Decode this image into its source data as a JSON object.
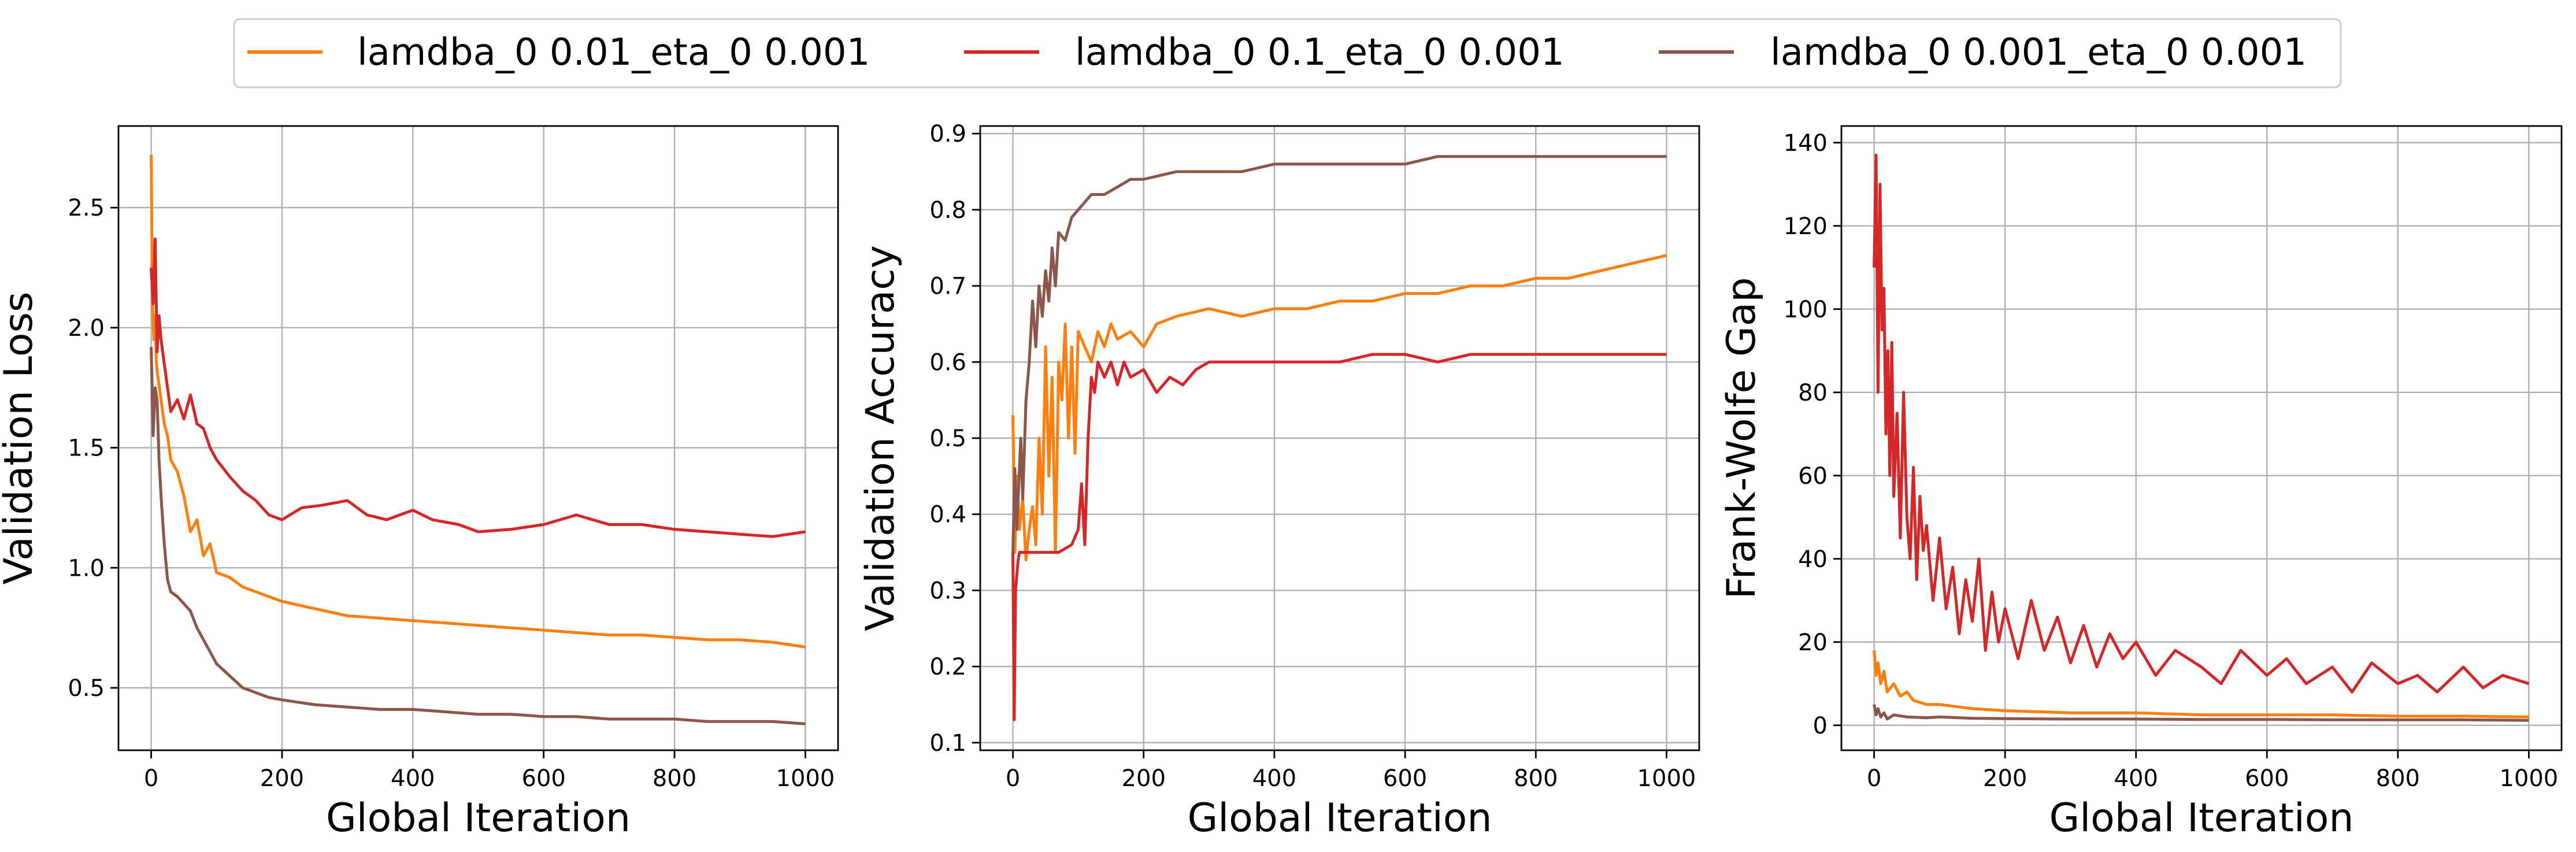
{
  "legend": [
    {
      "label": "lamdba_0 0.01_eta_0 0.001",
      "color": "#ff7f0e"
    },
    {
      "label": "lamdba_0 0.1_eta_0 0.001",
      "color": "#d62728"
    },
    {
      "label": "lamdba_0 0.001_eta_0 0.001",
      "color": "#8c564b"
    }
  ],
  "chart_data": [
    {
      "type": "line",
      "xlabel": "Global Iteration",
      "ylabel": "Validation Loss",
      "xlim": [
        -50,
        1050
      ],
      "ylim": [
        0.24,
        2.84
      ],
      "xticks": [
        0,
        200,
        400,
        600,
        800,
        1000
      ],
      "yticks": [
        0.5,
        1.0,
        1.5,
        2.0,
        2.5
      ],
      "yticklabels": [
        "0.5",
        "1.0",
        "1.5",
        "2.0",
        "2.5"
      ],
      "grid": true,
      "series": [
        {
          "name": "lamdba_0 0.01_eta_0 0.001",
          "color": "#ff7f0e",
          "x": [
            0,
            2,
            4,
            6,
            8,
            10,
            15,
            20,
            25,
            30,
            40,
            50,
            60,
            70,
            80,
            90,
            100,
            120,
            140,
            160,
            180,
            200,
            250,
            300,
            350,
            400,
            450,
            500,
            550,
            600,
            650,
            700,
            750,
            800,
            850,
            900,
            950,
            1000
          ],
          "y": [
            2.72,
            2.1,
            1.95,
            2.05,
            1.85,
            1.8,
            1.7,
            1.6,
            1.55,
            1.45,
            1.4,
            1.3,
            1.15,
            1.2,
            1.05,
            1.1,
            0.98,
            0.96,
            0.92,
            0.9,
            0.88,
            0.86,
            0.83,
            0.8,
            0.79,
            0.78,
            0.77,
            0.76,
            0.75,
            0.74,
            0.73,
            0.72,
            0.72,
            0.71,
            0.7,
            0.7,
            0.69,
            0.67
          ]
        },
        {
          "name": "lamdba_0 0.1_eta_0 0.001",
          "color": "#d62728",
          "x": [
            0,
            3,
            6,
            9,
            12,
            15,
            20,
            25,
            30,
            40,
            50,
            60,
            70,
            80,
            90,
            100,
            120,
            140,
            160,
            180,
            200,
            230,
            260,
            300,
            330,
            360,
            400,
            430,
            470,
            500,
            550,
            600,
            650,
            700,
            750,
            800,
            850,
            900,
            950,
            1000
          ],
          "y": [
            2.25,
            2.1,
            2.37,
            1.9,
            2.05,
            1.95,
            1.85,
            1.75,
            1.65,
            1.7,
            1.62,
            1.72,
            1.6,
            1.58,
            1.5,
            1.45,
            1.38,
            1.32,
            1.28,
            1.22,
            1.2,
            1.25,
            1.26,
            1.28,
            1.22,
            1.2,
            1.24,
            1.2,
            1.18,
            1.15,
            1.16,
            1.18,
            1.22,
            1.18,
            1.18,
            1.16,
            1.15,
            1.14,
            1.13,
            1.15
          ]
        },
        {
          "name": "lamdba_0 0.001_eta_0 0.001",
          "color": "#8c564b",
          "x": [
            0,
            3,
            6,
            9,
            12,
            15,
            20,
            25,
            30,
            40,
            50,
            60,
            70,
            80,
            90,
            100,
            120,
            140,
            160,
            180,
            200,
            250,
            300,
            350,
            400,
            450,
            500,
            550,
            600,
            650,
            700,
            750,
            800,
            850,
            900,
            950,
            1000
          ],
          "y": [
            1.92,
            1.55,
            1.75,
            1.7,
            1.45,
            1.3,
            1.1,
            0.95,
            0.9,
            0.88,
            0.85,
            0.82,
            0.75,
            0.7,
            0.65,
            0.6,
            0.55,
            0.5,
            0.48,
            0.46,
            0.45,
            0.43,
            0.42,
            0.41,
            0.41,
            0.4,
            0.39,
            0.39,
            0.38,
            0.38,
            0.37,
            0.37,
            0.37,
            0.36,
            0.36,
            0.36,
            0.35
          ]
        }
      ]
    },
    {
      "type": "line",
      "xlabel": "Global Iteration",
      "ylabel": "Validation Accuracy",
      "xlim": [
        -50,
        1050
      ],
      "ylim": [
        0.09,
        0.91
      ],
      "xticks": [
        0,
        200,
        400,
        600,
        800,
        1000
      ],
      "yticks": [
        0.1,
        0.2,
        0.3,
        0.4,
        0.5,
        0.6,
        0.7,
        0.8,
        0.9
      ],
      "yticklabels": [
        "0.1",
        "0.2",
        "0.3",
        "0.4",
        "0.5",
        "0.6",
        "0.7",
        "0.8",
        "0.9"
      ],
      "grid": true,
      "series": [
        {
          "name": "lamdba_0 0.01_eta_0 0.001",
          "color": "#ff7f0e",
          "x": [
            0,
            3,
            6,
            10,
            15,
            20,
            25,
            30,
            35,
            40,
            45,
            50,
            55,
            60,
            65,
            70,
            75,
            80,
            85,
            90,
            95,
            100,
            110,
            120,
            130,
            140,
            150,
            160,
            180,
            200,
            220,
            250,
            300,
            350,
            400,
            450,
            500,
            550,
            600,
            650,
            700,
            750,
            800,
            850,
            900,
            950,
            1000
          ],
          "y": [
            0.53,
            0.35,
            0.45,
            0.38,
            0.42,
            0.34,
            0.38,
            0.41,
            0.36,
            0.5,
            0.4,
            0.62,
            0.45,
            0.58,
            0.35,
            0.6,
            0.55,
            0.65,
            0.5,
            0.62,
            0.48,
            0.64,
            0.62,
            0.6,
            0.64,
            0.62,
            0.65,
            0.63,
            0.64,
            0.62,
            0.65,
            0.66,
            0.67,
            0.66,
            0.67,
            0.67,
            0.68,
            0.68,
            0.69,
            0.69,
            0.7,
            0.7,
            0.71,
            0.71,
            0.72,
            0.73,
            0.74
          ]
        },
        {
          "name": "lamdba_0 0.1_eta_0 0.001",
          "color": "#d62728",
          "x": [
            0,
            2,
            4,
            6,
            8,
            10,
            15,
            20,
            30,
            50,
            70,
            90,
            100,
            105,
            110,
            115,
            120,
            125,
            130,
            140,
            150,
            160,
            170,
            180,
            200,
            220,
            240,
            260,
            280,
            300,
            350,
            400,
            450,
            500,
            550,
            600,
            650,
            700,
            750,
            800,
            850,
            900,
            950,
            1000
          ],
          "y": [
            0.35,
            0.13,
            0.3,
            0.32,
            0.34,
            0.35,
            0.35,
            0.35,
            0.35,
            0.35,
            0.35,
            0.36,
            0.38,
            0.44,
            0.36,
            0.5,
            0.58,
            0.56,
            0.6,
            0.58,
            0.6,
            0.57,
            0.6,
            0.58,
            0.59,
            0.56,
            0.58,
            0.57,
            0.59,
            0.6,
            0.6,
            0.6,
            0.6,
            0.6,
            0.61,
            0.61,
            0.6,
            0.61,
            0.61,
            0.61,
            0.61,
            0.61,
            0.61,
            0.61
          ]
        },
        {
          "name": "lamdba_0 0.001_eta_0 0.001",
          "color": "#8c564b",
          "x": [
            0,
            3,
            6,
            9,
            12,
            15,
            20,
            25,
            30,
            35,
            40,
            45,
            50,
            55,
            60,
            65,
            70,
            80,
            90,
            100,
            110,
            120,
            140,
            160,
            180,
            200,
            250,
            300,
            350,
            400,
            450,
            500,
            550,
            600,
            650,
            700,
            750,
            800,
            850,
            900,
            950,
            1000
          ],
          "y": [
            0.35,
            0.46,
            0.38,
            0.44,
            0.5,
            0.42,
            0.55,
            0.6,
            0.68,
            0.62,
            0.7,
            0.66,
            0.72,
            0.68,
            0.75,
            0.7,
            0.77,
            0.76,
            0.79,
            0.8,
            0.81,
            0.82,
            0.82,
            0.83,
            0.84,
            0.84,
            0.85,
            0.85,
            0.85,
            0.86,
            0.86,
            0.86,
            0.86,
            0.86,
            0.87,
            0.87,
            0.87,
            0.87,
            0.87,
            0.87,
            0.87,
            0.87
          ]
        }
      ]
    },
    {
      "type": "line",
      "xlabel": "Global Iteration",
      "ylabel": "Frank-Wolfe Gap",
      "xlim": [
        -50,
        1050
      ],
      "ylim": [
        -6,
        144
      ],
      "xticks": [
        0,
        200,
        400,
        600,
        800,
        1000
      ],
      "yticks": [
        0,
        20,
        40,
        60,
        80,
        100,
        120,
        140
      ],
      "yticklabels": [
        "0",
        "20",
        "40",
        "60",
        "80",
        "100",
        "120",
        "140"
      ],
      "grid": true,
      "series": [
        {
          "name": "lamdba_0 0.01_eta_0 0.001",
          "color": "#ff7f0e",
          "x": [
            0,
            3,
            6,
            10,
            15,
            20,
            30,
            40,
            50,
            60,
            80,
            100,
            150,
            200,
            300,
            400,
            500,
            600,
            700,
            800,
            900,
            1000
          ],
          "y": [
            18,
            12,
            15,
            10,
            13,
            8,
            10,
            7,
            8,
            6,
            5,
            5,
            4,
            3.5,
            3,
            3,
            2.5,
            2.5,
            2.5,
            2.2,
            2.2,
            2
          ]
        },
        {
          "name": "lamdba_0 0.1_eta_0 0.001",
          "color": "#d62728",
          "x": [
            0,
            3,
            6,
            9,
            12,
            15,
            18,
            21,
            24,
            27,
            30,
            35,
            40,
            45,
            50,
            55,
            60,
            65,
            70,
            75,
            80,
            90,
            100,
            110,
            120,
            130,
            140,
            150,
            160,
            170,
            180,
            190,
            200,
            220,
            240,
            260,
            280,
            300,
            320,
            340,
            360,
            380,
            400,
            430,
            460,
            500,
            530,
            560,
            600,
            630,
            660,
            700,
            730,
            760,
            800,
            830,
            860,
            900,
            930,
            960,
            1000
          ],
          "y": [
            110,
            137,
            80,
            130,
            95,
            105,
            70,
            90,
            60,
            92,
            55,
            75,
            45,
            80,
            50,
            40,
            62,
            35,
            55,
            42,
            48,
            30,
            45,
            28,
            38,
            22,
            35,
            25,
            40,
            18,
            32,
            20,
            28,
            16,
            30,
            18,
            26,
            15,
            24,
            14,
            22,
            16,
            20,
            12,
            18,
            14,
            10,
            18,
            12,
            16,
            10,
            14,
            8,
            15,
            10,
            12,
            8,
            14,
            9,
            12,
            10
          ]
        },
        {
          "name": "lamdba_0 0.001_eta_0 0.001",
          "color": "#8c564b",
          "x": [
            0,
            3,
            6,
            10,
            15,
            20,
            30,
            50,
            80,
            100,
            150,
            200,
            300,
            400,
            500,
            600,
            700,
            800,
            900,
            1000
          ],
          "y": [
            5,
            2.5,
            4,
            2,
            3,
            1.5,
            2.5,
            2,
            1.8,
            2,
            1.7,
            1.6,
            1.5,
            1.5,
            1.4,
            1.4,
            1.3,
            1.3,
            1.3,
            1.2
          ]
        }
      ]
    }
  ]
}
